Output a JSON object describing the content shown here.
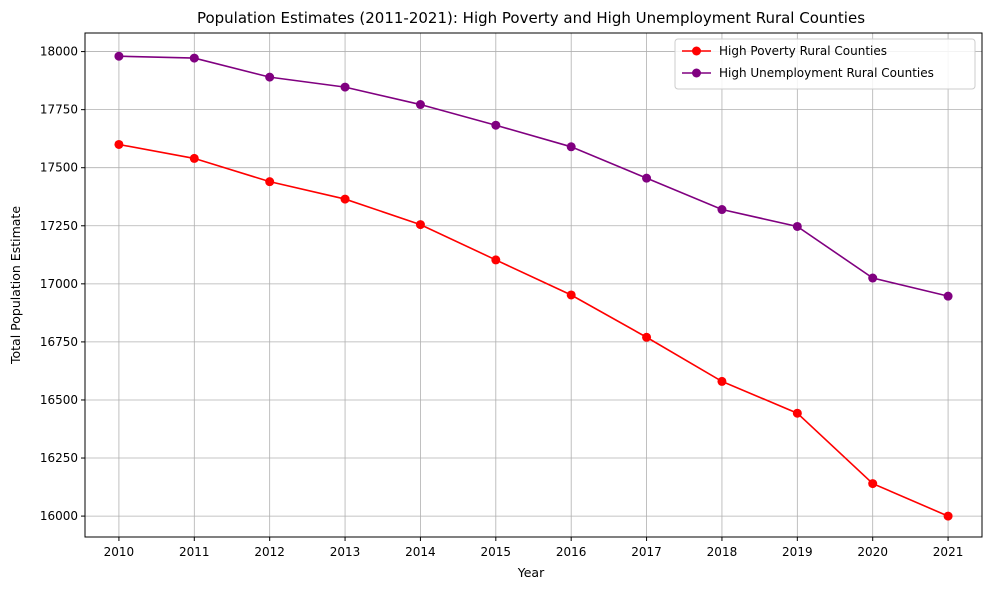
{
  "chart_data": {
    "type": "line",
    "title": "Population Estimates (2011-2021): High Poverty and High Unemployment Rural Counties",
    "xlabel": "Year",
    "ylabel": "Total Population Estimate",
    "x": [
      2010,
      2011,
      2012,
      2013,
      2014,
      2015,
      2016,
      2017,
      2018,
      2019,
      2020,
      2021
    ],
    "x_tick_labels": [
      "2010",
      "2011",
      "2012",
      "2013",
      "2014",
      "2015",
      "2016",
      "2017",
      "2018",
      "2019",
      "2020",
      "2021"
    ],
    "y_ticks": [
      16000,
      16250,
      16500,
      16750,
      17000,
      17250,
      17500,
      17750,
      18000
    ],
    "y_tick_labels": [
      "16000",
      "16250",
      "16500",
      "16750",
      "17000",
      "17250",
      "17500",
      "17750",
      "18000"
    ],
    "xlim": [
      2009.55,
      2021.45
    ],
    "ylim": [
      15910,
      18080
    ],
    "grid": true,
    "legend_position": "top-right",
    "series": [
      {
        "name": "High Poverty Rural Counties",
        "color": "#ff0000",
        "marker": "circle",
        "values": [
          17600,
          17540,
          17440,
          17365,
          17255,
          17103,
          16952,
          16770,
          16580,
          16443,
          16140,
          16000
        ]
      },
      {
        "name": "High Unemployment Rural Counties",
        "color": "#800080",
        "marker": "circle",
        "values": [
          17980,
          17972,
          17890,
          17847,
          17772,
          17683,
          17590,
          17455,
          17320,
          17247,
          17025,
          16947
        ]
      }
    ]
  }
}
